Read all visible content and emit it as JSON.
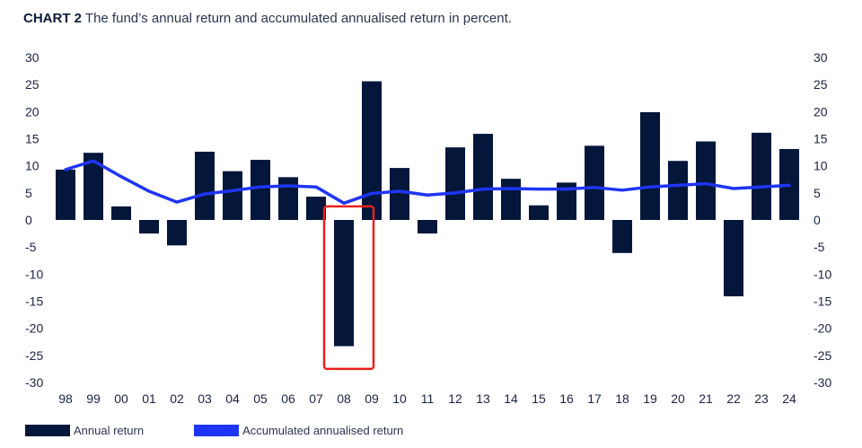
{
  "title": {
    "label": "CHART 2",
    "text": "The fund’s annual return and accumulated annualised return in percent."
  },
  "colors": {
    "bar": "#04163a",
    "line": "#1f35f5",
    "highlight": "#e8211d"
  },
  "legend": [
    {
      "label": "Annual return",
      "color": "#04163a"
    },
    {
      "label": "Accumulated annualised return",
      "color": "#1f35f5"
    }
  ],
  "chart_data": {
    "type": "bar",
    "categories": [
      "98",
      "99",
      "00",
      "01",
      "02",
      "03",
      "04",
      "05",
      "06",
      "07",
      "08",
      "09",
      "10",
      "11",
      "12",
      "13",
      "14",
      "15",
      "16",
      "17",
      "18",
      "19",
      "20",
      "21",
      "22",
      "23",
      "24"
    ],
    "series": [
      {
        "name": "Annual return",
        "type": "bar",
        "values": [
          9.3,
          12.4,
          2.5,
          -2.5,
          -4.7,
          12.6,
          9.0,
          11.1,
          7.9,
          4.3,
          -23.3,
          25.6,
          9.6,
          -2.5,
          13.4,
          15.9,
          7.6,
          2.7,
          6.9,
          13.7,
          -6.1,
          19.9,
          10.9,
          14.5,
          -14.1,
          16.1,
          13.1
        ]
      },
      {
        "name": "Accumulated annualised return",
        "type": "line",
        "values": [
          9.3,
          10.9,
          8.0,
          5.3,
          3.3,
          4.8,
          5.4,
          6.1,
          6.3,
          6.1,
          3.1,
          4.9,
          5.3,
          4.6,
          5.0,
          5.7,
          5.8,
          5.7,
          5.7,
          6.0,
          5.5,
          6.1,
          6.4,
          6.7,
          5.8,
          6.1,
          6.4
        ]
      }
    ],
    "ylim": [
      -30,
      30
    ],
    "yticks": [
      "30",
      "25",
      "20",
      "15",
      "10",
      "5",
      "0",
      "-5",
      "-10",
      "-15",
      "-20",
      "-25",
      "-30"
    ],
    "secondary_y": true,
    "highlight": "08",
    "grid": false,
    "legend_position": "bottom-left"
  }
}
